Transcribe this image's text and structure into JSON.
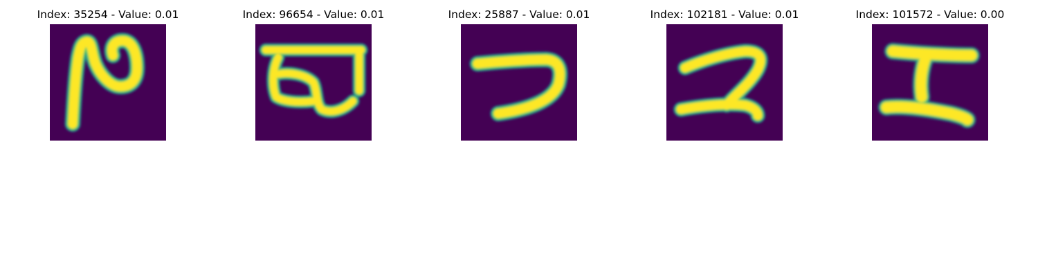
{
  "colors": {
    "background": "#440154",
    "stroke_core": "#fde725",
    "stroke_mid": "#5ec962",
    "stroke_edge": "#21918c"
  },
  "panels": [
    {
      "title": "Index: 35254 - Value: 0.01"
    },
    {
      "title": "Index: 96654 - Value: 0.01"
    },
    {
      "title": "Index: 25887 - Value: 0.01"
    },
    {
      "title": "Index: 102181 - Value: 0.01"
    },
    {
      "title": "Index: 101572 - Value: 0.00"
    }
  ]
}
